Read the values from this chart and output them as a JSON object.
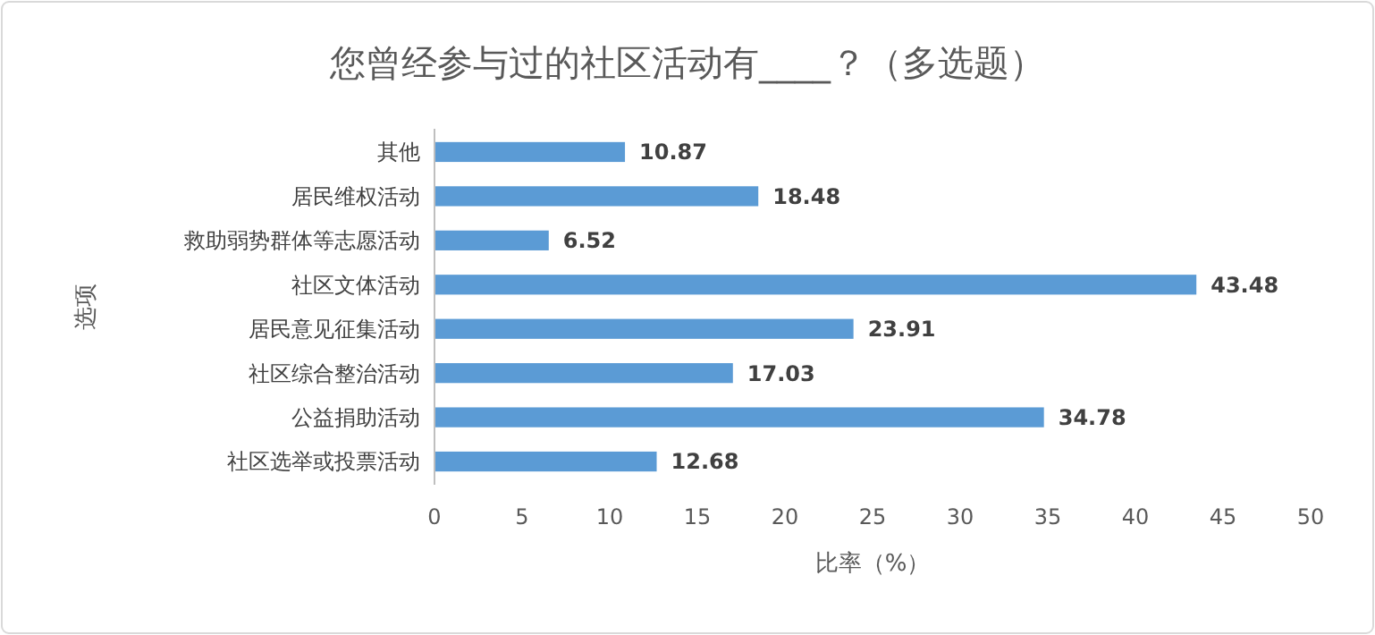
{
  "chart_data": {
    "type": "bar",
    "orientation": "horizontal",
    "title": "您曾经参与过的社区活动有____？（多选题）",
    "xlabel": "比率（%）",
    "ylabel": "选项",
    "categories": [
      "其他",
      "居民维权活动",
      "救助弱势群体等志愿活动",
      "社区文体活动",
      "居民意见征集活动",
      "社区综合整治活动",
      "公益捐助活动",
      "社区选举或投票活动"
    ],
    "values": [
      10.87,
      18.48,
      6.52,
      43.48,
      23.91,
      17.03,
      34.78,
      12.68
    ],
    "color": "#5b9bd5",
    "xlim": [
      0,
      50
    ],
    "xticks": [
      0,
      5,
      10,
      15,
      20,
      25,
      30,
      35,
      40,
      45,
      50
    ],
    "data_labels": true
  }
}
